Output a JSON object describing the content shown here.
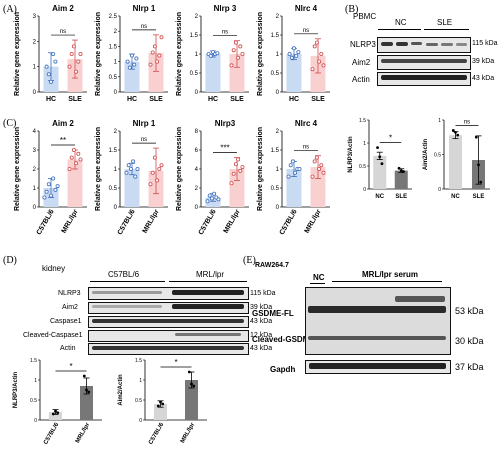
{
  "panels": {
    "A": "(A)",
    "B": "(B)",
    "C": "(C)",
    "D": "(D)",
    "E": "(E)"
  },
  "colors": {
    "ctrl_fill": "#c9daf3",
    "ctrl_stroke": "#3f6fbf",
    "dis_fill": "#f8d0d0",
    "dis_stroke": "#d24b4b",
    "grey_bar": "#d6d6d6",
    "dark_bar": "#777777"
  },
  "chart_data": [
    {
      "id": "A1",
      "type": "bar",
      "title": "Aim 2",
      "ylabel": "Relative gene expression",
      "categories": [
        "HC",
        "SLE"
      ],
      "ylim": [
        0,
        3
      ],
      "yticks": [
        0,
        1,
        2,
        3
      ],
      "sig": "ns",
      "values": [
        1.0,
        1.3
      ],
      "err": [
        0.55,
        0.75
      ],
      "points": [
        [
          1.0,
          0.7,
          0.4,
          1.5,
          1.2
        ],
        [
          1.0,
          1.5,
          1.8,
          0.8,
          1.2,
          1.5
        ]
      ]
    },
    {
      "id": "A2",
      "type": "bar",
      "title": "Nlrp 1",
      "ylabel": "Relative gene expression",
      "categories": [
        "HC",
        "SLE"
      ],
      "ylim": [
        0,
        2.5
      ],
      "yticks": [
        0,
        0.5,
        1.0,
        1.5,
        2.0,
        2.5
      ],
      "sig": "ns",
      "values": [
        1.0,
        1.28
      ],
      "err": [
        0.25,
        0.6
      ],
      "points": [
        [
          1.0,
          0.8,
          1.2,
          0.9,
          1.1
        ],
        [
          0.9,
          1.3,
          1.5,
          1.0,
          1.2,
          1.8
        ]
      ]
    },
    {
      "id": "A3",
      "type": "bar",
      "title": "Nlrp 3",
      "ylabel": "Relative gene expression",
      "categories": [
        "HC",
        "SLE"
      ],
      "ylim": [
        0,
        2.0
      ],
      "yticks": [
        0,
        0.5,
        1.0,
        1.5,
        2.0
      ],
      "sig": "ns",
      "values": [
        1.0,
        1.0
      ],
      "err": [
        0.08,
        0.35
      ],
      "points": [
        [
          1.0,
          0.95,
          1.05,
          1.0,
          1.02
        ],
        [
          0.7,
          1.1,
          1.3,
          0.9,
          1.2,
          1.0
        ]
      ]
    },
    {
      "id": "A4",
      "type": "bar",
      "title": "Nlrc 4",
      "ylabel": "Relative gene expression",
      "categories": [
        "HC",
        "SLE"
      ],
      "ylim": [
        0,
        2.0
      ],
      "yticks": [
        0,
        0.5,
        1.0,
        1.5,
        2.0
      ],
      "sig": "ns",
      "values": [
        1.0,
        0.95
      ],
      "err": [
        0.15,
        0.45
      ],
      "points": [
        [
          1.0,
          0.9,
          1.15,
          0.95,
          1.05
        ],
        [
          0.6,
          1.2,
          1.3,
          0.8,
          1.0,
          0.7
        ]
      ]
    },
    {
      "id": "C1",
      "type": "bar",
      "title": "Aim 2",
      "ylabel": "Relative gene expression",
      "categories": [
        "C57BL/6",
        "MRL/lpr"
      ],
      "ylim": [
        0,
        4
      ],
      "yticks": [
        0,
        1,
        2,
        3,
        4
      ],
      "sig": "**",
      "values": [
        1.0,
        2.5
      ],
      "err": [
        0.5,
        0.5
      ],
      "points": [
        [
          0.5,
          0.8,
          1.2,
          0.6,
          1.5,
          0.9,
          1.1
        ],
        [
          2.0,
          2.6,
          3.0,
          2.3,
          2.8,
          2.5
        ]
      ]
    },
    {
      "id": "C2",
      "type": "bar",
      "title": "Nlrp 1",
      "ylabel": "Relative gene expression",
      "categories": [
        "C57BL/6",
        "MRL/lpr"
      ],
      "ylim": [
        0,
        2.0
      ],
      "yticks": [
        0,
        0.5,
        1.0,
        1.5,
        2.0
      ],
      "sig": "ns",
      "values": [
        1.0,
        0.95
      ],
      "err": [
        0.15,
        0.6
      ],
      "points": [
        [
          0.9,
          1.1,
          1.0,
          1.2,
          0.8,
          1.0
        ],
        [
          0.6,
          0.9,
          1.3,
          0.7,
          1.0,
          1.1
        ]
      ]
    },
    {
      "id": "C3",
      "type": "bar",
      "title": "Nlrp3",
      "ylabel": "Relative gene expression",
      "categories": [
        "C57BL/6",
        "MRL/lpr"
      ],
      "ylim": [
        0,
        8
      ],
      "yticks": [
        0,
        2,
        4,
        6,
        8
      ],
      "sig": "***",
      "values": [
        1.0,
        4.0
      ],
      "err": [
        0.4,
        1.2
      ],
      "points": [
        [
          0.6,
          1.2,
          0.9,
          1.4,
          1.0,
          0.8
        ],
        [
          2.5,
          3.5,
          4.5,
          5.0,
          3.8,
          4.2
        ]
      ]
    },
    {
      "id": "C4",
      "type": "bar",
      "title": "Nlrc 4",
      "ylabel": "Relative gene expression",
      "categories": [
        "C57BL/6",
        "MRL/lpr"
      ],
      "ylim": [
        0,
        2.0
      ],
      "yticks": [
        0,
        0.5,
        1.0,
        1.5,
        2.0
      ],
      "sig": "ns",
      "values": [
        1.0,
        1.05
      ],
      "err": [
        0.2,
        0.3
      ],
      "points": [
        [
          0.8,
          1.1,
          1.2,
          0.9,
          1.0,
          1.0
        ],
        [
          0.8,
          1.2,
          1.3,
          1.0,
          1.1,
          0.9
        ]
      ]
    },
    {
      "id": "B1",
      "type": "bar",
      "title": "",
      "ylabel": "NLRP3/Actin",
      "categories": [
        "NC",
        "SLE"
      ],
      "ylim": [
        0,
        1.5
      ],
      "yticks": [
        0.0,
        0.5,
        1.0,
        1.5
      ],
      "sig": "*",
      "values": [
        0.72,
        0.4
      ],
      "err": [
        0.08,
        0.04
      ],
      "points": [
        [
          0.9,
          0.7,
          0.55
        ],
        [
          0.45,
          0.4,
          0.38
        ]
      ]
    },
    {
      "id": "B2",
      "type": "bar",
      "title": "",
      "ylabel": "Aim2/Actin",
      "categories": [
        "NC",
        "SLE"
      ],
      "ylim": [
        0,
        1.0
      ],
      "yticks": [
        0.0,
        0.5,
        1.0
      ],
      "sig": "ns",
      "values": [
        0.78,
        0.42
      ],
      "err": [
        0.05,
        0.35
      ],
      "points": [
        [
          0.85,
          0.82,
          0.78
        ],
        [
          0.75,
          0.35,
          0.1
        ]
      ]
    },
    {
      "id": "D1",
      "type": "bar",
      "title": "",
      "ylabel": "NLRP3/Actin",
      "categories": [
        "C57BL/6",
        "MRL/lpr"
      ],
      "ylim": [
        0,
        1.5
      ],
      "yticks": [
        0.0,
        0.5,
        1.0,
        1.5
      ],
      "sig": "*",
      "values": [
        0.2,
        0.85
      ],
      "err": [
        0.06,
        0.2
      ],
      "points": [
        [
          0.15,
          0.22,
          0.18
        ],
        [
          1.1,
          0.75,
          0.7
        ]
      ]
    },
    {
      "id": "D2",
      "type": "bar",
      "title": "",
      "ylabel": "Aim2/Actin",
      "categories": [
        "C57BL/6",
        "MRL/lpr"
      ],
      "ylim": [
        0,
        1.5
      ],
      "yticks": [
        0.0,
        0.5,
        1.0,
        1.5
      ],
      "sig": "*",
      "values": [
        0.4,
        1.0
      ],
      "err": [
        0.08,
        0.2
      ],
      "points": [
        [
          0.35,
          0.45,
          0.4
        ],
        [
          1.2,
          0.9,
          0.85
        ]
      ]
    }
  ],
  "blotB": {
    "header": "PBMC",
    "groups": [
      "NC",
      "SLE"
    ],
    "rows": [
      {
        "label": "NLRP3",
        "kda": "115 kDa"
      },
      {
        "label": "Aim2",
        "kda": "39 kDa"
      },
      {
        "label": "Actin",
        "kda": "43 kDa"
      }
    ]
  },
  "blotD": {
    "header": "kidney",
    "groups": [
      "C57BL/6",
      "MRL/lpr"
    ],
    "rows": [
      {
        "label": "NLRP3",
        "kda": "115 kDa"
      },
      {
        "label": "Aim2",
        "kda": "39 kDa"
      },
      {
        "label": "Caspase1",
        "kda": "43 kDa"
      },
      {
        "label": "Cleaved-Caspase1",
        "kda": "12 kDa"
      },
      {
        "label": "Actin",
        "kda": "43 kDa"
      }
    ]
  },
  "blotE": {
    "header": "RAW264.7",
    "groups": [
      "NC",
      "MRL/lpr serum"
    ],
    "rows": [
      {
        "label": "GSDME-FL",
        "kda": "53 kDa"
      },
      {
        "label": "Cleaved-GSDME",
        "kda": "30 kDa"
      },
      {
        "label": "Gapdh",
        "kda": "37 kDa"
      }
    ]
  }
}
